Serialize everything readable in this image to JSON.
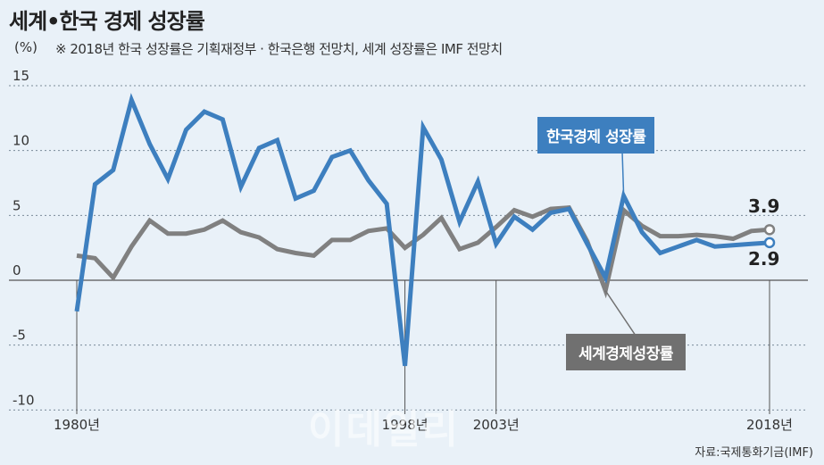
{
  "header": {
    "title": "세계•한국 경제 성장률",
    "unit": "(%)",
    "note": "※ 2018년 한국 성장률은 기획재정부 · 한국은행 전망치, 세계 성장률은 IMF 전망치"
  },
  "source": "자료:국제통화기금(IMF)",
  "watermark": "이데일리",
  "chart_data": {
    "type": "line",
    "ylim": [
      -10,
      15
    ],
    "yticks": [
      "15",
      "10",
      "5",
      "0",
      "-5",
      "-10"
    ],
    "xlim": [
      1980,
      2018
    ],
    "xtick_labels": [
      {
        "year": 1980,
        "label": "1980년"
      },
      {
        "year": 1998,
        "label": "1998년"
      },
      {
        "year": 2003,
        "label": "2003년"
      },
      {
        "year": 2018,
        "label": "2018년"
      }
    ],
    "grid": "dashed horizontal",
    "series": [
      {
        "name": "한국경제 성장률",
        "color": "#3d7fbf",
        "years": [
          1980,
          1981,
          1982,
          1983,
          1984,
          1985,
          1986,
          1987,
          1988,
          1989,
          1990,
          1991,
          1992,
          1993,
          1994,
          1995,
          1996,
          1997,
          1998,
          1999,
          2000,
          2001,
          2002,
          2003,
          2004,
          2005,
          2006,
          2007,
          2008,
          2009,
          2010,
          2011,
          2012,
          2013,
          2014,
          2015,
          2016,
          2017,
          2018
        ],
        "values": [
          -2.4,
          7.4,
          8.5,
          13.9,
          10.5,
          7.8,
          11.6,
          13.0,
          12.4,
          7.2,
          10.2,
          10.8,
          6.3,
          6.9,
          9.5,
          10.0,
          7.7,
          5.9,
          -6.6,
          11.8,
          9.3,
          4.5,
          7.6,
          2.8,
          4.9,
          3.9,
          5.2,
          5.5,
          2.8,
          0.2,
          6.5,
          3.7,
          2.1,
          2.6,
          3.1,
          2.6,
          2.7,
          2.8,
          2.9
        ],
        "end_label": "2.9"
      },
      {
        "name": "세계경제성장률",
        "color": "#808080",
        "years": [
          1980,
          1981,
          1982,
          1983,
          1984,
          1985,
          1986,
          1987,
          1988,
          1989,
          1990,
          1991,
          1992,
          1993,
          1994,
          1995,
          1996,
          1997,
          1998,
          1999,
          2000,
          2001,
          2002,
          2003,
          2004,
          2005,
          2006,
          2007,
          2008,
          2009,
          2010,
          2011,
          2012,
          2013,
          2014,
          2015,
          2016,
          2017,
          2018
        ],
        "values": [
          1.9,
          1.7,
          0.2,
          2.6,
          4.6,
          3.6,
          3.6,
          3.9,
          4.6,
          3.7,
          3.3,
          2.4,
          2.1,
          1.9,
          3.1,
          3.1,
          3.8,
          4.0,
          2.5,
          3.5,
          4.8,
          2.4,
          2.9,
          4.1,
          5.4,
          4.9,
          5.5,
          5.6,
          3.0,
          -0.8,
          5.4,
          4.2,
          3.4,
          3.4,
          3.5,
          3.4,
          3.2,
          3.8,
          3.9
        ],
        "end_label": "3.9"
      }
    ]
  }
}
